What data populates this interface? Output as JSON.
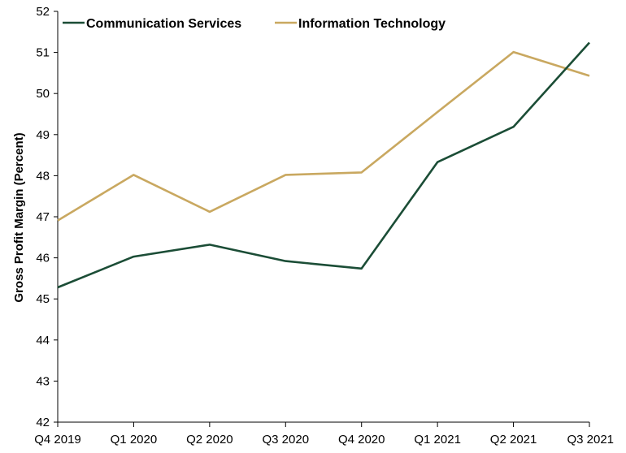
{
  "chart_data": {
    "type": "line",
    "title": "",
    "xlabel": "",
    "ylabel": "Gross Profit Margin (Percent)",
    "ylim": [
      42,
      52
    ],
    "yticks": [
      "42",
      "43",
      "44",
      "45",
      "46",
      "47",
      "48",
      "49",
      "50",
      "51",
      "52"
    ],
    "categories": [
      "Q4 2019",
      "Q1 2020",
      "Q2 2020",
      "Q3 2020",
      "Q4 2020",
      "Q1 2021",
      "Q2 2021",
      "Q3 2021"
    ],
    "grid": false,
    "legend_position": "top-left",
    "series": [
      {
        "name": "Communication Services",
        "color": "#1b4d36",
        "values": [
          45.28,
          46.03,
          46.32,
          45.92,
          45.74,
          48.33,
          49.19,
          51.24
        ]
      },
      {
        "name": "Information Technology",
        "color": "#c9a860",
        "values": [
          46.91,
          48.02,
          47.12,
          48.02,
          48.08,
          49.55,
          51.01,
          50.43
        ]
      }
    ]
  }
}
